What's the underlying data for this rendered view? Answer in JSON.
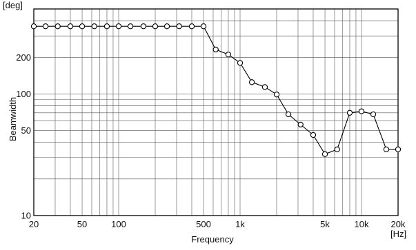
{
  "chart_data": {
    "type": "line",
    "title": "",
    "xlabel": "Frequency",
    "ylabel": "Beamwidth",
    "x_unit_label": "[Hz]",
    "y_unit_label": "[deg]",
    "x_scale": "log",
    "y_scale": "log",
    "xlim": [
      20,
      20000
    ],
    "ylim": [
      10,
      500
    ],
    "x_tick_labels": [
      {
        "value": 20,
        "label": "20"
      },
      {
        "value": 50,
        "label": "50"
      },
      {
        "value": 100,
        "label": "100"
      },
      {
        "value": 500,
        "label": "500"
      },
      {
        "value": 1000,
        "label": "1k"
      },
      {
        "value": 5000,
        "label": "5k"
      },
      {
        "value": 10000,
        "label": "10k"
      },
      {
        "value": 20000,
        "label": "20k"
      }
    ],
    "y_tick_labels": [
      {
        "value": 10,
        "label": "10"
      },
      {
        "value": 50,
        "label": "50"
      },
      {
        "value": 100,
        "label": "100"
      },
      {
        "value": 200,
        "label": "200"
      }
    ],
    "grid": true,
    "marker": "open-circle",
    "line_color": "#000000",
    "series": [
      {
        "x": [
          20,
          25,
          31.5,
          40,
          50,
          63,
          80,
          100,
          125,
          160,
          200,
          250,
          315,
          400,
          500,
          630,
          800,
          1000,
          1250,
          1600,
          2000,
          2500,
          3150,
          4000,
          5000,
          6300,
          8000,
          10000,
          12500,
          16000,
          20000
        ],
        "y": [
          360,
          360,
          360,
          360,
          360,
          360,
          360,
          360,
          360,
          360,
          360,
          360,
          360,
          360,
          360,
          232,
          211,
          180,
          125,
          114,
          99,
          68,
          56,
          46,
          32,
          35,
          70,
          72,
          68,
          35,
          35
        ]
      }
    ]
  }
}
